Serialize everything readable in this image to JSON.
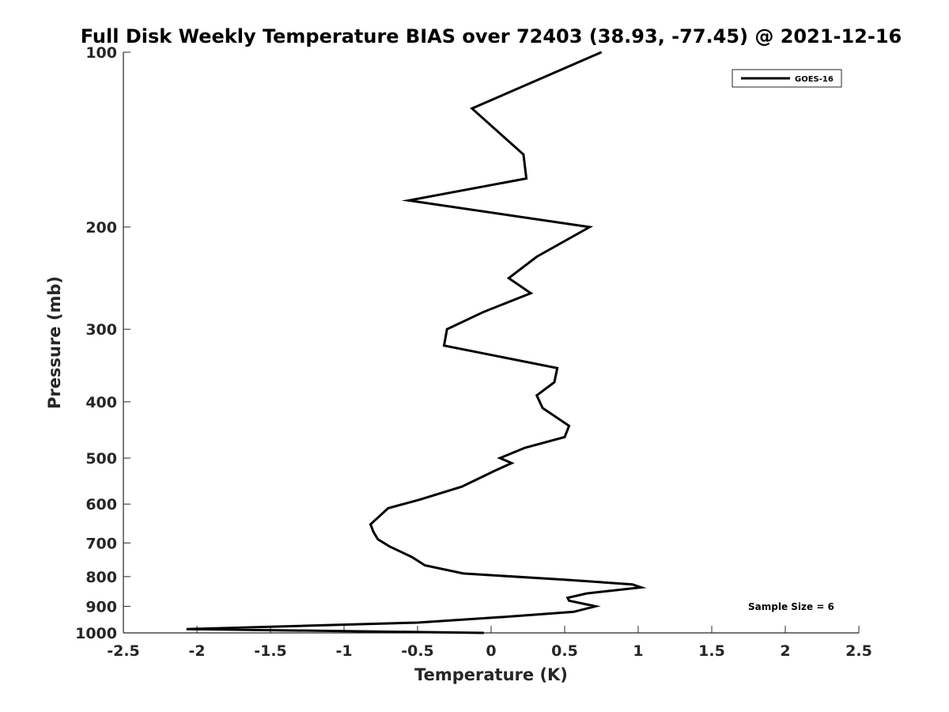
{
  "chart_data": {
    "type": "line",
    "title": "Full Disk Weekly Temperature BIAS over 72403 (38.93, -77.45) @ 2021-12-16",
    "xlabel": "Temperature (K)",
    "ylabel": "Pressure (mb)",
    "xlim": [
      -2.5,
      2.5
    ],
    "ylim": [
      1000,
      100
    ],
    "y_scale": "log",
    "y_reversed": true,
    "grid": false,
    "legend_position": "top-right",
    "x_ticks": [
      "-2.5",
      "-2",
      "-1.5",
      "-1",
      "-0.5",
      "0",
      "0.5",
      "1",
      "1.5",
      "2",
      "2.5"
    ],
    "y_ticks": [
      "100",
      "200",
      "300",
      "400",
      "500",
      "600",
      "700",
      "800",
      "900",
      "1000"
    ],
    "annotation": "Sample Size = 6",
    "series": [
      {
        "name": "GOES-16",
        "color": "#000000",
        "points": [
          [
            0.75,
            100
          ],
          [
            -0.13,
            125
          ],
          [
            0.22,
            150
          ],
          [
            0.24,
            165
          ],
          [
            -0.56,
            180
          ],
          [
            0.67,
            200
          ],
          [
            0.31,
            225
          ],
          [
            0.12,
            245
          ],
          [
            0.27,
            260
          ],
          [
            -0.05,
            280
          ],
          [
            -0.3,
            300
          ],
          [
            -0.32,
            320
          ],
          [
            0.45,
            350
          ],
          [
            0.43,
            370
          ],
          [
            0.31,
            390
          ],
          [
            0.35,
            410
          ],
          [
            0.53,
            440
          ],
          [
            0.5,
            460
          ],
          [
            0.23,
            480
          ],
          [
            0.06,
            500
          ],
          [
            0.14,
            510
          ],
          [
            0.03,
            525
          ],
          [
            -0.2,
            560
          ],
          [
            -0.49,
            590
          ],
          [
            -0.7,
            610
          ],
          [
            -0.76,
            630
          ],
          [
            -0.82,
            650
          ],
          [
            -0.8,
            670
          ],
          [
            -0.77,
            690
          ],
          [
            -0.69,
            710
          ],
          [
            -0.54,
            740
          ],
          [
            -0.45,
            765
          ],
          [
            -0.19,
            790
          ],
          [
            0.5,
            810
          ],
          [
            0.96,
            825
          ],
          [
            1.02,
            835
          ],
          [
            0.65,
            855
          ],
          [
            0.52,
            870
          ],
          [
            0.53,
            880
          ],
          [
            0.71,
            900
          ],
          [
            0.56,
            920
          ],
          [
            0.05,
            940
          ],
          [
            -0.5,
            960
          ],
          [
            -2.07,
            985
          ],
          [
            -0.05,
            1000
          ]
        ]
      }
    ]
  }
}
